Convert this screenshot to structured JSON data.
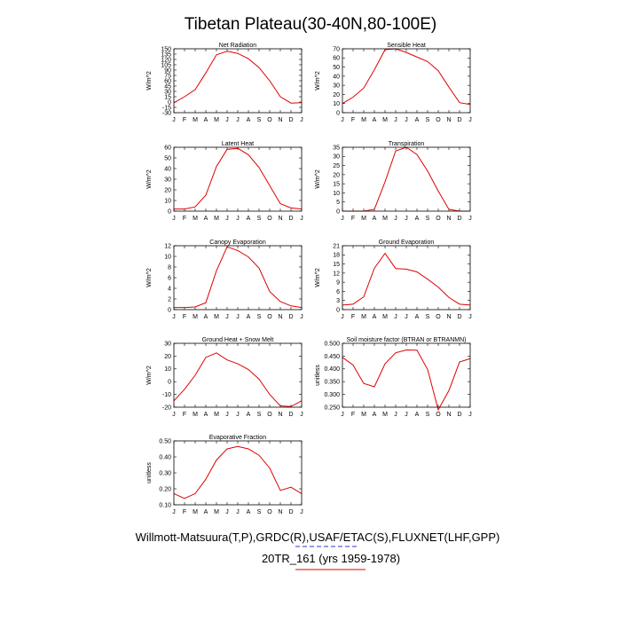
{
  "title": "Tibetan Plateau(30-40N,80-100E)",
  "footer": {
    "line1": "Willmott-Matsuura(T,P),GRDC(R),USAF/ETAC(S),FLUXNET(LHF,GPP)",
    "line2": "20TR_161 (yrs 1959-1978)",
    "line1_underline_color": "#3333cc",
    "line2_underline_color": "#e00000"
  },
  "colors": {
    "series": "#e00000",
    "axes": "#000000"
  },
  "chart_data": [
    {
      "id": "net-radiation",
      "type": "line",
      "title": "Net Radiation",
      "ylabel": "W/m^2",
      "categories": [
        "J",
        "F",
        "M",
        "A",
        "M",
        "J",
        "J",
        "A",
        "S",
        "O",
        "N",
        "D",
        "J"
      ],
      "values": [
        -2,
        15,
        35,
        82,
        133,
        143,
        137,
        122,
        97,
        60,
        15,
        -3,
        -2
      ],
      "ylim": [
        -30,
        150
      ],
      "yticks": [
        -30,
        -15,
        0,
        15,
        30,
        45,
        60,
        75,
        90,
        105,
        120,
        135,
        150
      ],
      "ydecimals": 0
    },
    {
      "id": "sensible-heat",
      "type": "line",
      "title": "Sensible Heat",
      "ylabel": "W/m^2",
      "categories": [
        "J",
        "F",
        "M",
        "A",
        "M",
        "J",
        "J",
        "A",
        "S",
        "O",
        "N",
        "D",
        "J"
      ],
      "values": [
        10,
        17,
        27,
        47,
        69,
        70,
        66,
        61,
        56,
        46,
        28,
        11,
        9
      ],
      "ylim": [
        0,
        70
      ],
      "yticks": [
        0,
        10,
        20,
        30,
        40,
        50,
        60,
        70
      ],
      "ydecimals": 0
    },
    {
      "id": "latent-heat",
      "type": "line",
      "title": "Latent Heat",
      "ylabel": "W/m^2",
      "categories": [
        "J",
        "F",
        "M",
        "A",
        "M",
        "J",
        "J",
        "A",
        "S",
        "O",
        "N",
        "D",
        "J"
      ],
      "values": [
        2,
        2,
        4,
        15,
        42,
        58,
        59,
        53,
        41,
        24,
        7,
        3,
        2
      ],
      "ylim": [
        0,
        60
      ],
      "yticks": [
        0,
        10,
        20,
        30,
        40,
        50,
        60
      ],
      "ydecimals": 0
    },
    {
      "id": "transpiration",
      "type": "line",
      "title": "Transpiration",
      "ylabel": "W/m^2",
      "categories": [
        "J",
        "F",
        "M",
        "A",
        "M",
        "J",
        "J",
        "A",
        "S",
        "O",
        "N",
        "D",
        "J"
      ],
      "values": [
        0,
        0,
        0,
        1,
        16,
        33,
        35,
        31,
        22,
        11,
        1,
        0,
        0
      ],
      "ylim": [
        0,
        35
      ],
      "yticks": [
        0,
        5,
        10,
        15,
        20,
        25,
        30,
        35
      ],
      "ydecimals": 0
    },
    {
      "id": "canopy-evaporation",
      "type": "line",
      "title": "Canopy Evaporation",
      "ylabel": "W/m^2",
      "categories": [
        "J",
        "F",
        "M",
        "A",
        "M",
        "J",
        "J",
        "A",
        "S",
        "O",
        "N",
        "D",
        "J"
      ],
      "values": [
        0.4,
        0.4,
        0.5,
        1.3,
        7.3,
        11.8,
        11.1,
        9.9,
        7.8,
        3.4,
        1.5,
        0.7,
        0.4
      ],
      "ylim": [
        0,
        12
      ],
      "yticks": [
        0,
        2,
        4,
        6,
        8,
        10,
        12
      ],
      "ydecimals": 0
    },
    {
      "id": "ground-evaporation",
      "type": "line",
      "title": "Ground Evaporation",
      "ylabel": "W/m^2",
      "categories": [
        "J",
        "F",
        "M",
        "A",
        "M",
        "J",
        "J",
        "A",
        "S",
        "O",
        "N",
        "D",
        "J"
      ],
      "values": [
        1.5,
        1.8,
        4.2,
        13.6,
        18.5,
        13.5,
        13.3,
        12.4,
        10,
        7.4,
        4,
        1.8,
        1.5
      ],
      "ylim": [
        0,
        21
      ],
      "yticks": [
        0,
        3,
        6,
        9,
        12,
        15,
        18,
        21
      ],
      "ydecimals": 0
    },
    {
      "id": "ground-heat-snow-melt",
      "type": "line",
      "title": "Ground Heat + Snow Melt",
      "ylabel": "W/m^2",
      "categories": [
        "J",
        "F",
        "M",
        "A",
        "M",
        "J",
        "J",
        "A",
        "S",
        "O",
        "N",
        "D",
        "J"
      ],
      "values": [
        -15,
        -6,
        5,
        19,
        22.5,
        17,
        14,
        9.5,
        2,
        -10,
        -19,
        -19.5,
        -15
      ],
      "ylim": [
        -20,
        30
      ],
      "yticks": [
        -20,
        -10,
        0,
        10,
        20,
        30
      ],
      "ydecimals": 0
    },
    {
      "id": "soil-moisture-factor",
      "type": "line",
      "title": "Soil moisture factor (BTRAN or BTRANMN)",
      "ylabel": "unitless",
      "categories": [
        "J",
        "F",
        "M",
        "A",
        "M",
        "J",
        "J",
        "A",
        "S",
        "O",
        "N",
        "D",
        "J"
      ],
      "values": [
        0.445,
        0.415,
        0.343,
        0.33,
        0.42,
        0.463,
        0.474,
        0.473,
        0.398,
        0.24,
        0.315,
        0.427,
        0.44
      ],
      "ylim": [
        0.25,
        0.5
      ],
      "yticks": [
        0.25,
        0.3,
        0.35,
        0.4,
        0.45,
        0.5
      ],
      "ydecimals": 3
    },
    {
      "id": "evaporative-fraction",
      "type": "line",
      "title": "Evaporative Fraction",
      "ylabel": "unitless",
      "categories": [
        "J",
        "F",
        "M",
        "A",
        "M",
        "J",
        "J",
        "A",
        "S",
        "O",
        "N",
        "D",
        "J"
      ],
      "values": [
        0.17,
        0.14,
        0.17,
        0.26,
        0.38,
        0.45,
        0.465,
        0.45,
        0.41,
        0.33,
        0.19,
        0.21,
        0.17
      ],
      "ylim": [
        0.1,
        0.5
      ],
      "yticks": [
        0.1,
        0.2,
        0.3,
        0.4,
        0.5
      ],
      "ydecimals": 2
    }
  ]
}
